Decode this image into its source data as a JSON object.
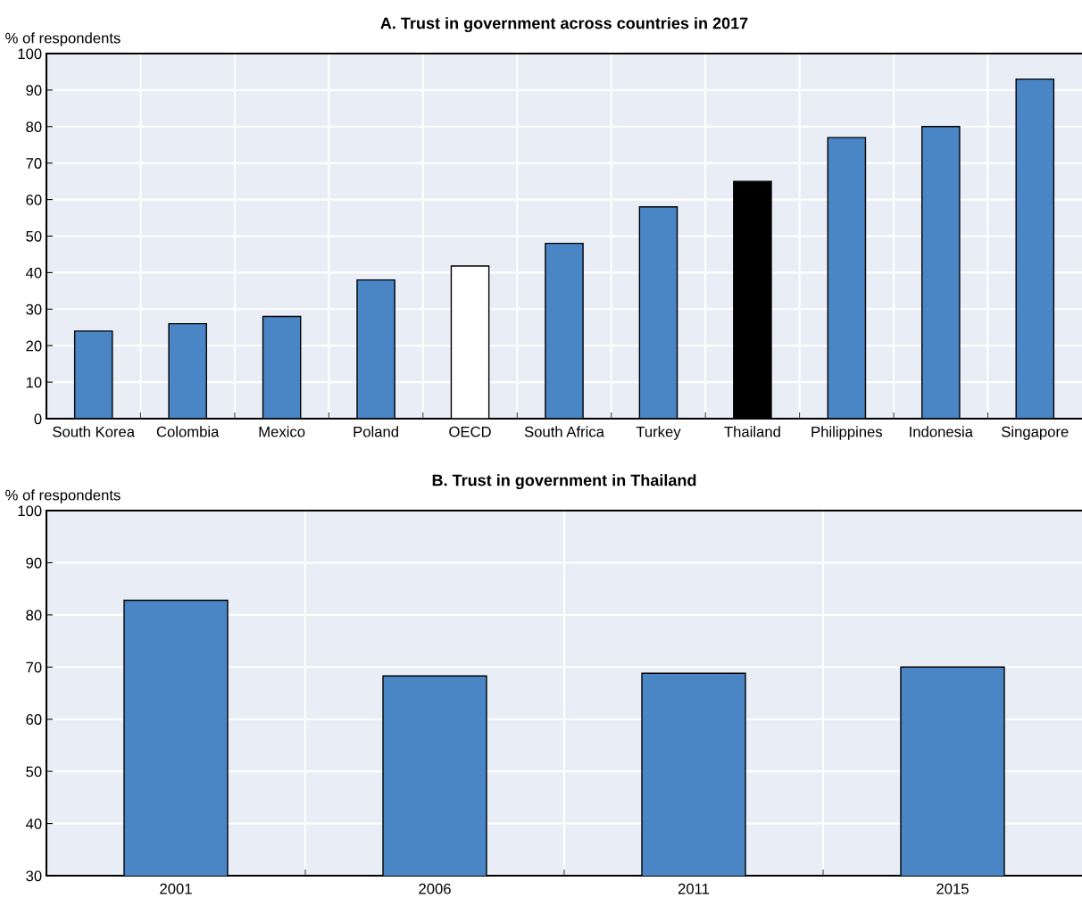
{
  "chart_data": [
    {
      "type": "bar",
      "title": "A. Trust in government across countries in 2017",
      "ylabel": "% of respondents",
      "categories": [
        "South Korea",
        "Colombia",
        "Mexico",
        "Poland",
        "OECD",
        "South Africa",
        "Turkey",
        "Thailand",
        "Philippines",
        "Indonesia",
        "Singapore"
      ],
      "values": [
        24,
        26,
        28,
        38,
        41.8,
        48,
        58,
        65,
        77,
        80,
        93
      ],
      "colors": [
        "#4a86c5",
        "#4a86c5",
        "#4a86c5",
        "#4a86c5",
        "#ffffff",
        "#4a86c5",
        "#4a86c5",
        "#000000",
        "#4a86c5",
        "#4a86c5",
        "#4a86c5"
      ],
      "ylim": [
        0,
        100
      ],
      "yticks": [
        0,
        10,
        20,
        30,
        40,
        50,
        60,
        70,
        80,
        90,
        100
      ],
      "grid": true
    },
    {
      "type": "bar",
      "title": "B. Trust in government in Thailand",
      "ylabel": "% of respondents",
      "categories": [
        "2001",
        "2006",
        "2011",
        "2015"
      ],
      "values": [
        82.8,
        68.3,
        68.8,
        70.0
      ],
      "colors": [
        "#4a86c5",
        "#4a86c5",
        "#4a86c5",
        "#4a86c5"
      ],
      "ylim": [
        30,
        100
      ],
      "yticks": [
        30,
        40,
        50,
        60,
        70,
        80,
        90,
        100
      ],
      "grid": true
    }
  ]
}
